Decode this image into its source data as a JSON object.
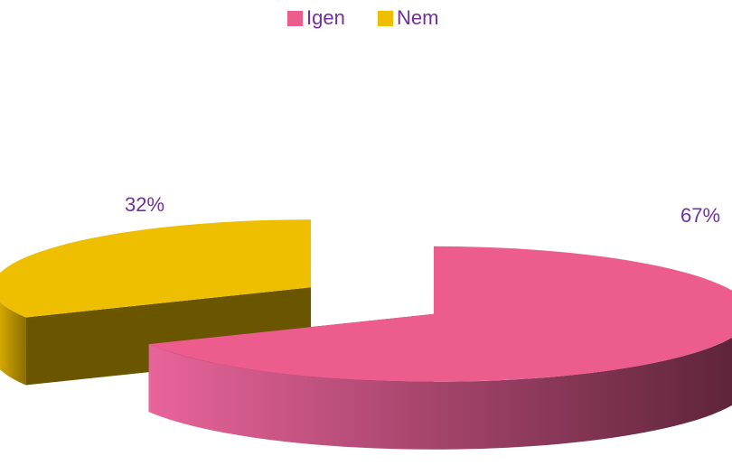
{
  "chart_data": {
    "type": "pie",
    "categories": [
      "Igen",
      "Nem"
    ],
    "values": [
      67,
      32
    ],
    "value_labels": [
      "67%",
      "32%"
    ],
    "colors": [
      "#ec5d8e",
      "#eebe00"
    ],
    "legend": "top"
  }
}
